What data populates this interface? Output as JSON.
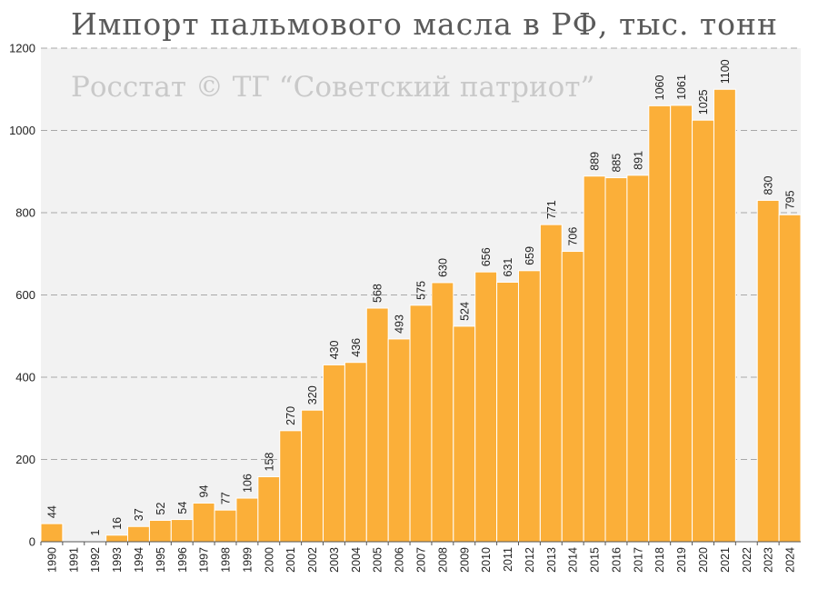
{
  "chart_data": {
    "type": "bar",
    "title": "Импорт пальмового масла в РФ, тыс. тонн",
    "watermark": "Росстат © ТГ “Советский патриот”",
    "categories": [
      "1990",
      "1991",
      "1992",
      "1993",
      "1994",
      "1995",
      "1996",
      "1997",
      "1998",
      "1999",
      "2000",
      "2001",
      "2002",
      "2003",
      "2004",
      "2005",
      "2006",
      "2007",
      "2008",
      "2009",
      "2010",
      "2011",
      "2012",
      "2013",
      "2014",
      "2015",
      "2016",
      "2017",
      "2018",
      "2019",
      "2020",
      "2021",
      "2022",
      "2023",
      "2024"
    ],
    "values": [
      44,
      null,
      1,
      16,
      37,
      52,
      54,
      94,
      77,
      106,
      158,
      270,
      320,
      430,
      436,
      568,
      493,
      575,
      630,
      524,
      656,
      631,
      659,
      771,
      706,
      889,
      885,
      891,
      1060,
      1061,
      1025,
      1100,
      null,
      830,
      795
    ],
    "ylim": [
      0,
      1200
    ],
    "yticks": [
      0,
      200,
      400,
      600,
      800,
      1000,
      1200
    ],
    "grid": true,
    "bar_color": "#FBAF39",
    "plot_background": "#F2F2F2",
    "xlabel": "",
    "ylabel": ""
  }
}
